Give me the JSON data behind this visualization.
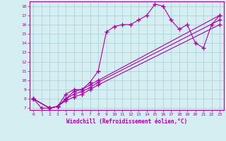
{
  "background_color": "#d4eef2",
  "grid_color": "#aaccd4",
  "line_color": "#aa00aa",
  "marker": "+",
  "markersize": 4,
  "linewidth": 0.8,
  "xlabel": "Windchill (Refroidissement éolien,°C)",
  "xlabel_color": "#aa00aa",
  "tick_color": "#aa00aa",
  "xlim": [
    -0.5,
    23.5
  ],
  "ylim": [
    6.8,
    18.5
  ],
  "xticks": [
    0,
    1,
    2,
    3,
    4,
    5,
    6,
    7,
    8,
    9,
    10,
    11,
    12,
    13,
    14,
    15,
    16,
    17,
    18,
    19,
    20,
    21,
    22,
    23
  ],
  "yticks": [
    7,
    8,
    9,
    10,
    11,
    12,
    13,
    14,
    15,
    16,
    17,
    18
  ],
  "series": [
    {
      "x": [
        0,
        1,
        2,
        3,
        4,
        5,
        6,
        7,
        8,
        9,
        10,
        11,
        12,
        13,
        14,
        15,
        16,
        17,
        18,
        19,
        20,
        21,
        22,
        23
      ],
      "y": [
        8.0,
        7.0,
        7.0,
        7.2,
        8.5,
        9.0,
        9.0,
        9.8,
        11.0,
        15.2,
        15.8,
        16.0,
        16.0,
        16.5,
        17.0,
        18.2,
        18.0,
        16.5,
        15.5,
        16.0,
        14.0,
        13.5,
        16.0,
        17.0
      ]
    },
    {
      "x": [
        0,
        2,
        3,
        4,
        5,
        6,
        7,
        8,
        23
      ],
      "y": [
        8.0,
        7.0,
        7.2,
        8.0,
        8.8,
        9.0,
        9.5,
        10.0,
        17.0
      ]
    },
    {
      "x": [
        0,
        2,
        3,
        4,
        5,
        6,
        7,
        8,
        23
      ],
      "y": [
        8.0,
        7.0,
        7.2,
        8.0,
        8.5,
        8.8,
        9.2,
        9.8,
        16.5
      ]
    },
    {
      "x": [
        0,
        2,
        3,
        4,
        5,
        6,
        7,
        8,
        23
      ],
      "y": [
        8.0,
        7.0,
        7.2,
        7.8,
        8.2,
        8.5,
        9.0,
        9.5,
        16.0
      ]
    }
  ]
}
